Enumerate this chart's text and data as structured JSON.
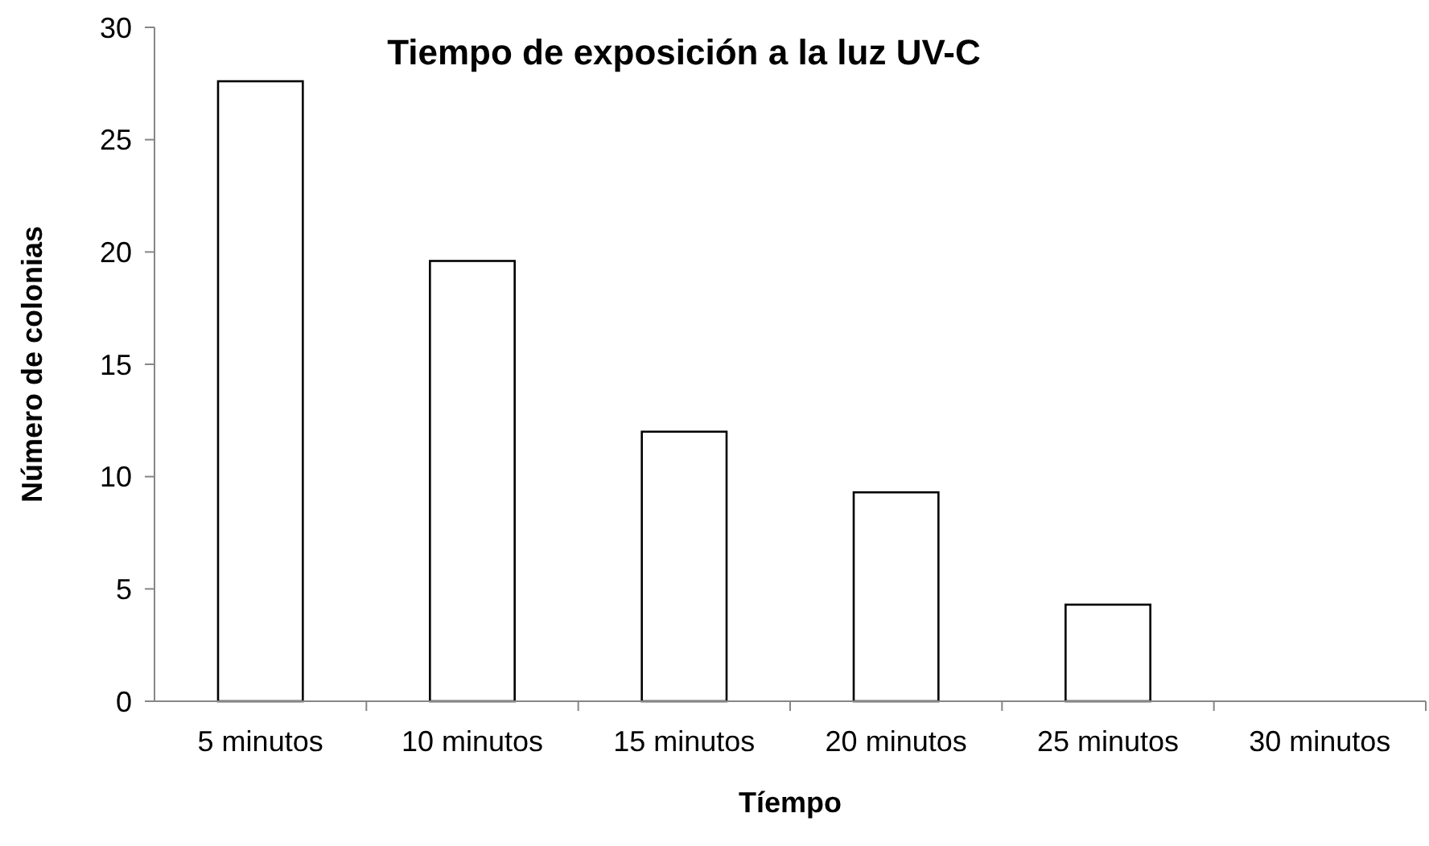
{
  "chart_data": {
    "type": "bar",
    "title": "Tiempo de exposición a la luz UV-C",
    "xlabel": "Tíempo",
    "ylabel": "Número de colonias",
    "categories": [
      "5 minutos",
      "10 minutos",
      "15 minutos",
      "20 minutos",
      "25 minutos",
      "30 minutos"
    ],
    "values": [
      27.6,
      19.6,
      12,
      9.3,
      4.3,
      0
    ],
    "color": "#ffffff",
    "ylim": [
      0,
      30
    ],
    "yticks": [
      0,
      5,
      10,
      15,
      20,
      25,
      30
    ],
    "grid": false
  }
}
